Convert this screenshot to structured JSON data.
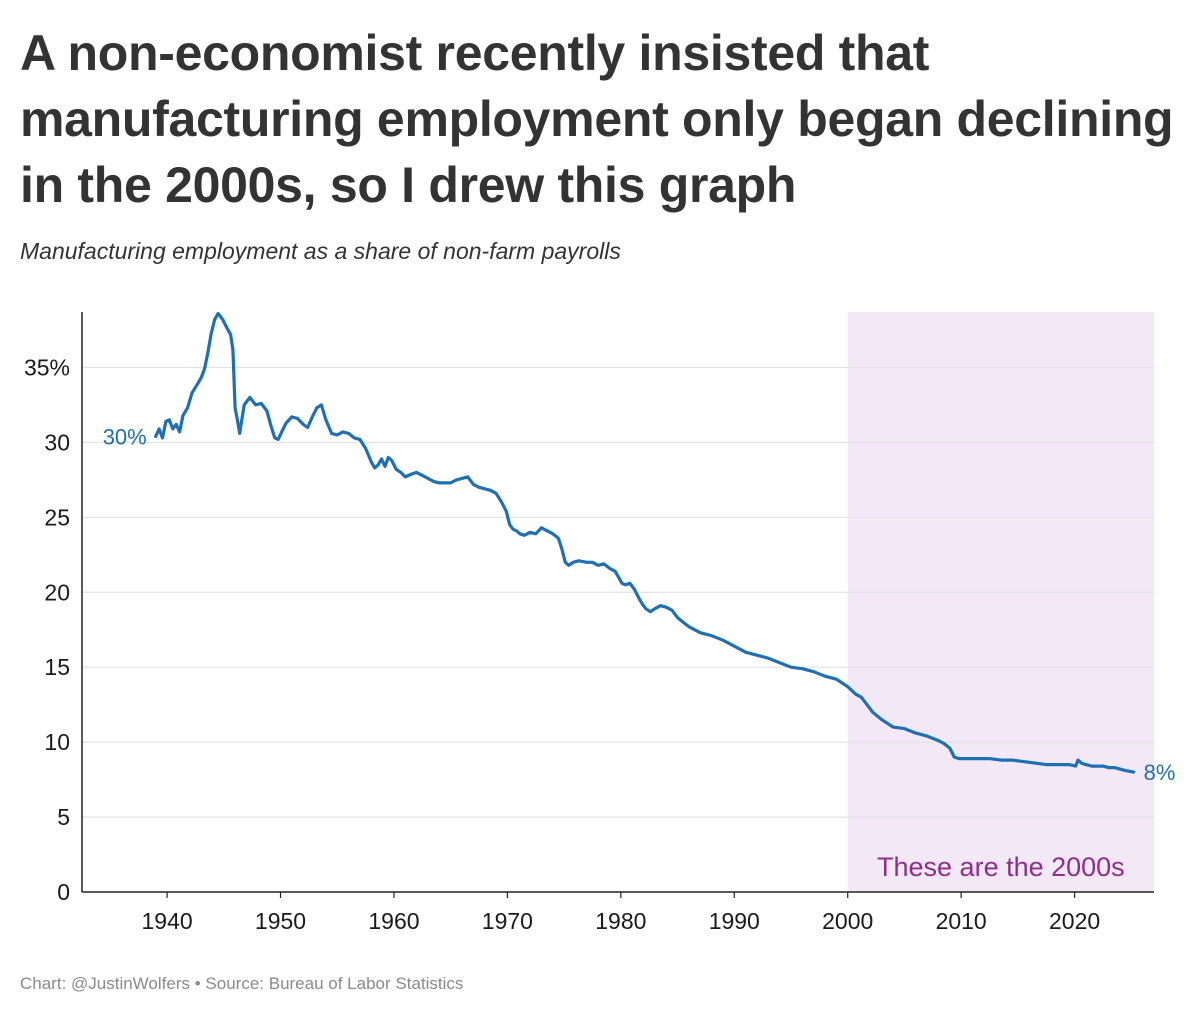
{
  "title": "A non-economist recently insisted that manufacturing employment only began declining in the 2000s, so I drew this graph",
  "subtitle": "Manufacturing employment as a share of non-farm payrolls",
  "footer": {
    "credit": "Chart: @JustinWolfers",
    "separator": "•",
    "source": "Source: Bureau of Labor Statistics"
  },
  "colors": {
    "line": "#1f6fb3",
    "shade": "#f3e8f5",
    "shade_label": "#8e2d8e",
    "grid": "#e2e2e2",
    "axis": "#222222"
  },
  "chart_data": {
    "type": "line",
    "title": "A non-economist recently insisted that manufacturing employment only began declining in the 2000s, so I drew this graph",
    "subtitle": "Manufacturing employment as a share of non-farm payrolls",
    "xlabel": "",
    "ylabel": "",
    "xlim": [
      1932.5,
      2027
    ],
    "ylim": [
      0,
      38.7
    ],
    "grid": "horizontal",
    "x_ticks": [
      {
        "value": 1940,
        "label": "1940"
      },
      {
        "value": 1950,
        "label": "1950"
      },
      {
        "value": 1960,
        "label": "1960"
      },
      {
        "value": 1970,
        "label": "1970"
      },
      {
        "value": 1980,
        "label": "1980"
      },
      {
        "value": 1990,
        "label": "1990"
      },
      {
        "value": 2000,
        "label": "2000"
      },
      {
        "value": 2010,
        "label": "2010"
      },
      {
        "value": 2020,
        "label": "2020"
      }
    ],
    "y_ticks": [
      {
        "value": 0,
        "label": "0"
      },
      {
        "value": 5,
        "label": "5"
      },
      {
        "value": 10,
        "label": "10"
      },
      {
        "value": 15,
        "label": "15"
      },
      {
        "value": 20,
        "label": "20"
      },
      {
        "value": 25,
        "label": "25"
      },
      {
        "value": 30,
        "label": "30"
      },
      {
        "value": 35,
        "label": "35%"
      }
    ],
    "shaded_region": {
      "x_start": 2000,
      "x_end": 2027,
      "label": "These are the 2000s"
    },
    "series": [
      {
        "name": "Manufacturing employment share",
        "start_label": "30%",
        "end_label": "8%",
        "x": [
          1939.0,
          1939.3,
          1939.6,
          1939.9,
          1940.2,
          1940.5,
          1940.8,
          1941.1,
          1941.4,
          1941.8,
          1942.2,
          1942.6,
          1943.0,
          1943.3,
          1943.6,
          1943.9,
          1944.2,
          1944.5,
          1944.9,
          1945.3,
          1945.6,
          1945.8,
          1946.0,
          1946.2,
          1946.4,
          1946.8,
          1947.3,
          1947.8,
          1948.3,
          1948.8,
          1949.2,
          1949.5,
          1949.8,
          1950.1,
          1950.5,
          1951.0,
          1951.5,
          1952.0,
          1952.4,
          1952.8,
          1953.2,
          1953.6,
          1954.0,
          1954.5,
          1955.0,
          1955.5,
          1956.0,
          1956.5,
          1957.0,
          1957.5,
          1958.0,
          1958.3,
          1958.6,
          1958.9,
          1959.2,
          1959.5,
          1959.8,
          1960.2,
          1960.6,
          1961.0,
          1961.3,
          1961.6,
          1962.0,
          1962.5,
          1963.0,
          1963.5,
          1964.0,
          1964.5,
          1965.0,
          1965.5,
          1966.0,
          1966.5,
          1967.0,
          1967.5,
          1968.0,
          1968.5,
          1969.0,
          1969.5,
          1969.9,
          1970.2,
          1970.5,
          1970.8,
          1971.1,
          1971.5,
          1972.0,
          1972.5,
          1973.0,
          1973.5,
          1974.0,
          1974.5,
          1974.8,
          1975.1,
          1975.4,
          1975.8,
          1976.3,
          1977.0,
          1977.5,
          1978.0,
          1978.5,
          1979.0,
          1979.5,
          1979.8,
          1980.1,
          1980.4,
          1980.8,
          1981.2,
          1981.6,
          1981.9,
          1982.2,
          1982.6,
          1983.0,
          1983.5,
          1984.0,
          1984.5,
          1985.0,
          1985.5,
          1986.0,
          1987.0,
          1988.0,
          1989.0,
          1990.0,
          1991.0,
          1992.0,
          1993.0,
          1994.0,
          1995.0,
          1996.0,
          1997.0,
          1998.0,
          1999.0,
          2000.0,
          2000.7,
          2001.2,
          2001.7,
          2002.2,
          2003.0,
          2004.0,
          2005.0,
          2006.0,
          2007.0,
          2008.0,
          2008.5,
          2009.0,
          2009.4,
          2009.8,
          2010.5,
          2011.5,
          2012.5,
          2013.5,
          2014.5,
          2015.5,
          2016.5,
          2017.5,
          2018.5,
          2019.5,
          2020.1,
          2020.3,
          2020.6,
          2021.0,
          2021.5,
          2022.0,
          2022.5,
          2023.0,
          2023.5,
          2024.0,
          2024.5,
          2025.2
        ],
        "values": [
          30.4,
          30.9,
          30.3,
          31.4,
          31.5,
          30.9,
          31.2,
          30.7,
          31.8,
          32.3,
          33.3,
          33.8,
          34.3,
          34.9,
          36.0,
          37.3,
          38.2,
          38.6,
          38.2,
          37.6,
          37.2,
          36.2,
          32.3,
          31.5,
          30.6,
          32.5,
          33.0,
          32.5,
          32.6,
          32.1,
          31.0,
          30.3,
          30.2,
          30.7,
          31.3,
          31.7,
          31.6,
          31.2,
          31.0,
          31.7,
          32.3,
          32.5,
          31.5,
          30.6,
          30.5,
          30.7,
          30.6,
          30.3,
          30.2,
          29.6,
          28.7,
          28.3,
          28.5,
          28.9,
          28.4,
          29.0,
          28.8,
          28.2,
          28.0,
          27.7,
          27.8,
          27.9,
          28.0,
          27.8,
          27.6,
          27.4,
          27.3,
          27.3,
          27.3,
          27.5,
          27.6,
          27.7,
          27.2,
          27.0,
          26.9,
          26.8,
          26.6,
          26.0,
          25.4,
          24.5,
          24.2,
          24.1,
          23.9,
          23.8,
          24.0,
          23.9,
          24.3,
          24.1,
          23.9,
          23.6,
          22.9,
          22.0,
          21.8,
          22.0,
          22.1,
          22.0,
          22.0,
          21.8,
          21.9,
          21.6,
          21.4,
          21.0,
          20.6,
          20.5,
          20.6,
          20.2,
          19.6,
          19.2,
          18.9,
          18.7,
          18.9,
          19.1,
          19.0,
          18.8,
          18.3,
          18.0,
          17.7,
          17.3,
          17.1,
          16.8,
          16.4,
          16.0,
          15.8,
          15.6,
          15.3,
          15.0,
          14.9,
          14.7,
          14.4,
          14.2,
          13.7,
          13.2,
          13.0,
          12.5,
          12.0,
          11.5,
          11.0,
          10.9,
          10.6,
          10.4,
          10.1,
          9.9,
          9.6,
          9.0,
          8.9,
          8.9,
          8.9,
          8.9,
          8.8,
          8.8,
          8.7,
          8.6,
          8.5,
          8.5,
          8.5,
          8.4,
          8.8,
          8.6,
          8.5,
          8.4,
          8.4,
          8.4,
          8.3,
          8.3,
          8.2,
          8.1,
          8.0
        ]
      }
    ]
  }
}
